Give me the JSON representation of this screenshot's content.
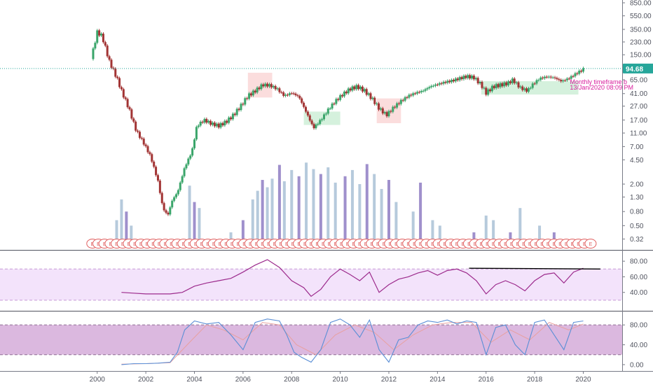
{
  "colors": {
    "up": "#26a69a",
    "down": "#ef5350",
    "candle_up": "#3aa56a",
    "candle_down": "#a23434",
    "vol_purple": "#8e7cc3",
    "vol_blue": "#a9c1d6",
    "rsi_line": "#9c2a8c",
    "rsi_band": "#f3e3fb",
    "stoch_band": "#dbb8df",
    "stoch_k": "#5b8fd6",
    "stoch_d": "#e8a0a0",
    "cloud_green": "#b9e7c7",
    "cloud_red": "#f9c6c6",
    "last_price_bg": "#26a69a",
    "annotation": "#d81b9c"
  },
  "chart_data": [
    {
      "type": "candlestick",
      "pane": "price",
      "scale": "log",
      "ylim": [
        0.25,
        850
      ],
      "y_ticks": [
        "850.00",
        "550.00",
        "350.00",
        "230.00",
        "150.00",
        "65.00",
        "41.00",
        "27.00",
        "17.00",
        "11.00",
        "7.00",
        "4.50",
        "2.00",
        "1.30",
        "0.80",
        "0.50",
        "0.32"
      ],
      "y_tick_values": [
        850,
        550,
        350,
        230,
        150,
        65,
        41,
        27,
        17,
        11,
        7,
        4.5,
        2,
        1.3,
        0.8,
        0.5,
        0.32
      ],
      "x_ticks": [
        "2000",
        "2002",
        "2004",
        "2006",
        "2008",
        "2010",
        "2012",
        "2014",
        "2016",
        "2018",
        "2020"
      ],
      "x_tick_values": [
        2000,
        2002,
        2004,
        2006,
        2008,
        2010,
        2012,
        2014,
        2016,
        2018,
        2020
      ],
      "xlim": [
        1996,
        2021.6
      ],
      "last_price": "94.68",
      "last_price_value": 94.68,
      "annotation": [
        "Monthly timeframe b",
        "13/Jan/2020 08:09 PM"
      ],
      "price_path": [
        [
          1999.75,
          130
        ],
        [
          2000.0,
          320
        ],
        [
          2000.2,
          280
        ],
        [
          2000.5,
          120
        ],
        [
          2000.8,
          70
        ],
        [
          2001.0,
          45
        ],
        [
          2001.3,
          25
        ],
        [
          2001.6,
          12
        ],
        [
          2001.9,
          8
        ],
        [
          2002.2,
          5
        ],
        [
          2002.5,
          2.2
        ],
        [
          2002.7,
          0.9
        ],
        [
          2002.9,
          0.7
        ],
        [
          2003.1,
          1.2
        ],
        [
          2003.3,
          1.5
        ],
        [
          2003.6,
          3.5
        ],
        [
          2003.9,
          6
        ],
        [
          2004.1,
          14
        ],
        [
          2004.4,
          17
        ],
        [
          2004.7,
          15
        ],
        [
          2005.0,
          14
        ],
        [
          2005.3,
          16
        ],
        [
          2005.6,
          20
        ],
        [
          2005.9,
          27
        ],
        [
          2006.2,
          38
        ],
        [
          2006.5,
          45
        ],
        [
          2006.8,
          55
        ],
        [
          2007.1,
          54
        ],
        [
          2007.4,
          48
        ],
        [
          2007.7,
          38
        ],
        [
          2008.0,
          42
        ],
        [
          2008.3,
          37
        ],
        [
          2008.6,
          22
        ],
        [
          2008.9,
          13
        ],
        [
          2009.2,
          17
        ],
        [
          2009.5,
          24
        ],
        [
          2009.8,
          32
        ],
        [
          2010.1,
          40
        ],
        [
          2010.4,
          48
        ],
        [
          2010.7,
          52
        ],
        [
          2011.0,
          45
        ],
        [
          2011.3,
          35
        ],
        [
          2011.6,
          25
        ],
        [
          2011.9,
          20
        ],
        [
          2012.2,
          26
        ],
        [
          2012.5,
          32
        ],
        [
          2012.8,
          38
        ],
        [
          2013.1,
          42
        ],
        [
          2013.4,
          45
        ],
        [
          2013.7,
          52
        ],
        [
          2014.0,
          56
        ],
        [
          2014.3,
          60
        ],
        [
          2014.6,
          63
        ],
        [
          2014.9,
          68
        ],
        [
          2015.2,
          73
        ],
        [
          2015.5,
          70
        ],
        [
          2015.8,
          55
        ],
        [
          2016.0,
          42
        ],
        [
          2016.3,
          52
        ],
        [
          2016.6,
          55
        ],
        [
          2016.9,
          58
        ],
        [
          2017.1,
          65
        ],
        [
          2017.4,
          50
        ],
        [
          2017.7,
          45
        ],
        [
          2017.9,
          55
        ],
        [
          2018.2,
          68
        ],
        [
          2018.5,
          72
        ],
        [
          2018.8,
          70
        ],
        [
          2019.1,
          62
        ],
        [
          2019.4,
          68
        ],
        [
          2019.7,
          80
        ],
        [
          2019.9,
          88
        ],
        [
          2020.05,
          94.68
        ]
      ],
      "volume": [
        [
          2000.6,
          0.3
        ],
        [
          2000.8,
          0.6
        ],
        [
          2001.0,
          1.2
        ],
        [
          2001.2,
          0.8
        ],
        [
          2001.4,
          0.5
        ],
        [
          2003.8,
          1.9
        ],
        [
          2004.0,
          1.1
        ],
        [
          2004.2,
          0.9
        ],
        [
          2005.5,
          0.4
        ],
        [
          2006.0,
          0.6
        ],
        [
          2006.4,
          1.2
        ],
        [
          2006.6,
          1.6
        ],
        [
          2006.8,
          2.3
        ],
        [
          2007.0,
          1.8
        ],
        [
          2007.2,
          2.4
        ],
        [
          2007.5,
          3.8
        ],
        [
          2007.7,
          2.2
        ],
        [
          2008.0,
          3.2
        ],
        [
          2008.3,
          2.6
        ],
        [
          2008.6,
          4.1
        ],
        [
          2008.9,
          3.3
        ],
        [
          2009.2,
          2.8
        ],
        [
          2009.5,
          3.5
        ],
        [
          2009.8,
          2.1
        ],
        [
          2010.2,
          2.6
        ],
        [
          2010.5,
          3.2
        ],
        [
          2010.8,
          2.0
        ],
        [
          2011.1,
          3.9
        ],
        [
          2011.4,
          2.8
        ],
        [
          2011.7,
          1.7
        ],
        [
          2012.0,
          2.3
        ],
        [
          2012.3,
          1.1
        ],
        [
          2013.0,
          0.8
        ],
        [
          2013.3,
          2.1
        ],
        [
          2013.8,
          0.6
        ],
        [
          2014.1,
          0.5
        ],
        [
          2015.5,
          0.4
        ],
        [
          2016.0,
          0.7
        ],
        [
          2016.3,
          0.6
        ],
        [
          2017.0,
          0.4
        ],
        [
          2017.4,
          0.9
        ],
        [
          2018.2,
          0.5
        ],
        [
          2018.8,
          0.4
        ]
      ],
      "cloud_green": [
        [
          2008.5,
          2010.0
        ],
        [
          2015.8,
          2019.8
        ]
      ],
      "cloud_red": [
        [
          2006.2,
          2007.2
        ],
        [
          2011.5,
          2012.5
        ]
      ],
      "earnings_markers": "E"
    },
    {
      "type": "line",
      "pane": "rsi",
      "ylim": [
        20,
        90
      ],
      "y_ticks": [
        "80.00",
        "60.00",
        "40.00"
      ],
      "y_tick_values": [
        80,
        60,
        40
      ],
      "band": [
        30,
        70
      ],
      "x": [
        2001.0,
        2001.5,
        2002.0,
        2002.5,
        2003.0,
        2003.5,
        2004.0,
        2004.5,
        2005.0,
        2005.5,
        2006.0,
        2006.5,
        2007.0,
        2007.5,
        2008.0,
        2008.5,
        2008.8,
        2009.2,
        2009.6,
        2010.0,
        2010.4,
        2010.8,
        2011.2,
        2011.6,
        2012.0,
        2012.4,
        2012.8,
        2013.2,
        2013.6,
        2014.0,
        2014.4,
        2014.8,
        2015.2,
        2015.6,
        2016.0,
        2016.4,
        2016.8,
        2017.2,
        2017.6,
        2018.0,
        2018.4,
        2018.8,
        2019.2,
        2019.6,
        2020.0
      ],
      "y": [
        40,
        39,
        38,
        38,
        38,
        40,
        48,
        52,
        55,
        58,
        66,
        75,
        82,
        72,
        55,
        46,
        35,
        44,
        60,
        70,
        63,
        55,
        66,
        40,
        50,
        57,
        60,
        65,
        68,
        62,
        68,
        70,
        65,
        55,
        38,
        50,
        55,
        50,
        42,
        55,
        63,
        65,
        52,
        66,
        71
      ],
      "trend_line": [
        [
          2015.3,
          71
        ],
        [
          2020.7,
          70
        ]
      ]
    },
    {
      "type": "line",
      "pane": "stoch",
      "ylim": [
        -10,
        100
      ],
      "y_ticks": [
        "80.00",
        "40.00",
        "0.00"
      ],
      "y_tick_values": [
        80,
        40,
        0
      ],
      "band": [
        20,
        80
      ],
      "series": [
        {
          "x": [
            2001.0,
            2001.5,
            2002.0,
            2002.5,
            2003.0,
            2003.3,
            2003.6,
            2004.0,
            2004.5,
            2005.0,
            2005.5,
            2006.0,
            2006.5,
            2007.0,
            2007.5,
            2007.8,
            2008.1,
            2008.4,
            2008.8,
            2009.2,
            2009.6,
            2010.0,
            2010.4,
            2010.8,
            2011.2,
            2011.6,
            2012.0,
            2012.4,
            2012.8,
            2013.2,
            2013.6,
            2014.0,
            2014.4,
            2014.8,
            2015.2,
            2015.6,
            2016.0,
            2016.4,
            2016.8,
            2017.2,
            2017.6,
            2018.0,
            2018.4,
            2018.8,
            2019.2,
            2019.6,
            2020.0
          ],
          "y": [
            0,
            2,
            2,
            3,
            5,
            25,
            70,
            88,
            82,
            85,
            60,
            30,
            85,
            92,
            88,
            60,
            25,
            15,
            5,
            30,
            85,
            92,
            80,
            55,
            90,
            30,
            5,
            50,
            55,
            80,
            88,
            85,
            90,
            82,
            88,
            85,
            20,
            75,
            80,
            40,
            20,
            85,
            90,
            60,
            30,
            85,
            88
          ]
        },
        {
          "x": [
            2001.0,
            2002.0,
            2003.0,
            2003.8,
            2004.5,
            2005.2,
            2006.0,
            2006.8,
            2007.5,
            2008.2,
            2009.0,
            2009.8,
            2010.6,
            2011.4,
            2012.2,
            2013.0,
            2013.8,
            2014.6,
            2015.4,
            2016.2,
            2017.0,
            2017.8,
            2018.6,
            2019.4,
            2020.0
          ],
          "y": [
            1,
            2,
            4,
            45,
            80,
            70,
            50,
            85,
            80,
            40,
            20,
            60,
            80,
            65,
            30,
            60,
            80,
            85,
            85,
            45,
            70,
            50,
            85,
            70,
            82
          ]
        }
      ]
    }
  ]
}
